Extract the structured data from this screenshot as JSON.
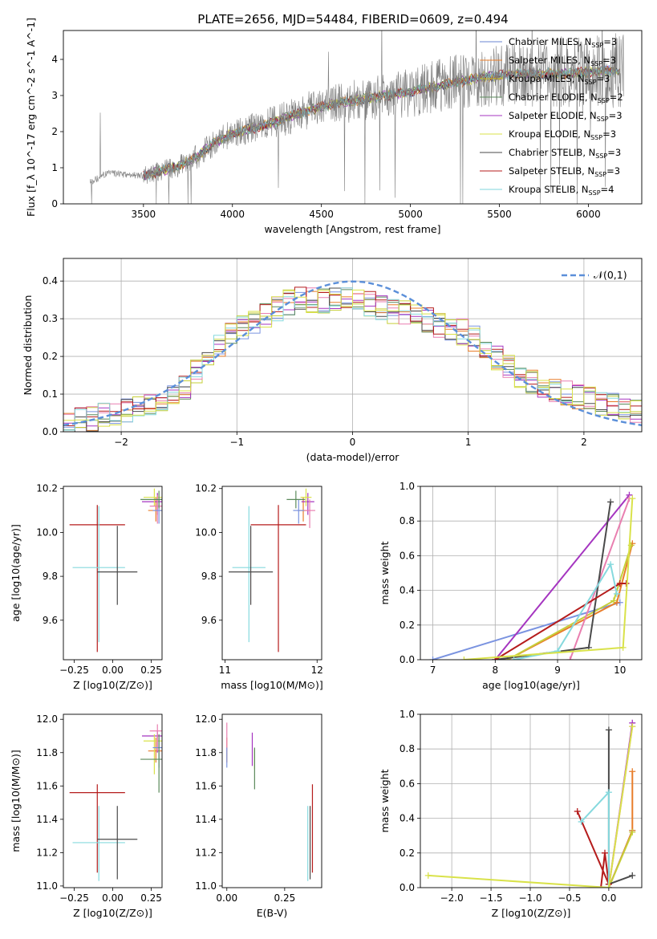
{
  "title": "PLATE=2656, MJD=54484, FIBERID=0609, z=0.494",
  "legend_entries": [
    {
      "label": "Chabrier MILES, N",
      "sub": "SSP",
      "suffix": "=3",
      "color": "#6a86d2"
    },
    {
      "label": "Salpeter MILES, N",
      "sub": "SSP",
      "suffix": "=3",
      "color": "#e87d2a"
    },
    {
      "label": "Kroupa MILES, N",
      "sub": "SSP",
      "suffix": "=3",
      "color": "#c6b823"
    },
    {
      "label": "Chabrier ELODIE, N",
      "sub": "SSP",
      "suffix": "=2",
      "color": "#5b8a5b"
    },
    {
      "label": "Salpeter ELODIE, N",
      "sub": "SSP",
      "suffix": "=3",
      "color": "#a535c0"
    },
    {
      "label": "Kroupa ELODIE, N",
      "sub": "SSP",
      "suffix": "=3",
      "color": "#d9e24a"
    },
    {
      "label": "Chabrier STELIB, N",
      "sub": "SSP",
      "suffix": "=3",
      "color": "#4a4a4a"
    },
    {
      "label": "Salpeter STELIB, N",
      "sub": "SSP",
      "suffix": "=3",
      "color": "#b51c1c"
    },
    {
      "label": "Kroupa STELIB, N",
      "sub": "SSP",
      "suffix": "=4",
      "color": "#7fd6dc"
    }
  ],
  "hist_colors": [
    "#7a93e0",
    "#e87d2a",
    "#c6cf3a",
    "#5b8a5b",
    "#a535c0",
    "#e97fb0",
    "#4a4a4a",
    "#b51c1c",
    "#86d9de",
    "#d9e24a"
  ],
  "chart_data": [
    {
      "type": "line",
      "name": "spectrum",
      "xlabel": "wavelength [Angstrom, rest frame]",
      "ylabel": "Flux [f_λ 10^-17 erg cm^-2 s^-1 A^-1]",
      "xlim": [
        3050,
        6300
      ],
      "ylim": [
        0,
        4.8
      ],
      "xticks": [
        3500,
        4000,
        4500,
        5000,
        5500,
        6000
      ],
      "yticks": [
        0,
        1,
        2,
        3,
        4
      ],
      "continuum": {
        "x": [
          3200,
          3300,
          3500,
          3700,
          3800,
          3900,
          4000,
          4200,
          4400,
          4600,
          4800,
          5000,
          5200,
          5400,
          5600,
          5800,
          6000,
          6150
        ],
        "y": [
          0.6,
          0.85,
          0.78,
          1.05,
          1.3,
          1.7,
          1.95,
          2.2,
          2.55,
          2.8,
          2.95,
          3.1,
          3.3,
          3.5,
          3.6,
          3.6,
          3.65,
          3.7
        ]
      },
      "legend_position": "upper right"
    },
    {
      "type": "line",
      "name": "residual-distribution",
      "xlabel": "(data-model)/error",
      "ylabel": "Normed distribution",
      "xlim": [
        -2.5,
        2.5
      ],
      "ylim": [
        0,
        0.46
      ],
      "xticks": [
        -2,
        -1,
        0,
        1,
        2
      ],
      "yticks": [
        0.0,
        0.1,
        0.2,
        0.3,
        0.4
      ],
      "series": [
        {
          "name": "𝒩(0,1)",
          "mean": 0,
          "sigma": 1
        }
      ],
      "hist_bins": [
        -2.5,
        2.5,
        50
      ],
      "hist_envelope": {
        "x": [
          -2.5,
          -2.0,
          -1.5,
          -1.2,
          -1.0,
          -0.5,
          0.0,
          0.5,
          1.0,
          1.3,
          1.5,
          2.0,
          2.5
        ],
        "y": [
          0.02,
          0.05,
          0.1,
          0.22,
          0.27,
          0.35,
          0.35,
          0.31,
          0.26,
          0.18,
          0.14,
          0.09,
          0.05
        ]
      },
      "grid": true,
      "legend_position": "upper right"
    },
    {
      "type": "scatter",
      "name": "age-vs-Z",
      "xlabel": "Z [log10(Z/Z⊙)]",
      "ylabel": "age [log10(age/yr)]",
      "xlim": [
        -0.32,
        0.32
      ],
      "ylim": [
        9.42,
        10.21
      ],
      "xticks": [
        -0.25,
        0.0,
        0.25
      ],
      "yticks": [
        9.6,
        9.8,
        10.0,
        10.2
      ],
      "points": [
        {
          "x": -0.1,
          "y": 10.035,
          "xerr": 0.18,
          "yerr": [
            0.58,
            0.09
          ],
          "c": 7
        },
        {
          "x": -0.09,
          "y": 9.84,
          "xerr": 0.17,
          "yerr": [
            0.34,
            0.28
          ],
          "c": 8
        },
        {
          "x": 0.03,
          "y": 9.82,
          "xerr": 0.13,
          "yerr": [
            0.15,
            0.21
          ],
          "c": 6
        },
        {
          "x": 0.28,
          "y": 10.1,
          "xerr": 0.05,
          "yerr": [
            0.05,
            0.06
          ],
          "c": 1
        },
        {
          "x": 0.29,
          "y": 10.14,
          "xerr": 0.1,
          "yerr": [
            0.06,
            0.04
          ],
          "c": 4
        },
        {
          "x": 0.27,
          "y": 10.16,
          "xerr": 0.07,
          "yerr": [
            0.04,
            0.04
          ],
          "c": 9
        },
        {
          "x": 0.29,
          "y": 10.12,
          "xerr": 0.05,
          "yerr": [
            0.08,
            0.05
          ],
          "c": 5
        },
        {
          "x": 0.3,
          "y": 10.1,
          "xerr": 0.04,
          "yerr": [
            0.06,
            0.05
          ],
          "c": 0
        },
        {
          "x": 0.3,
          "y": 10.15,
          "xerr": 0.12,
          "yerr": [
            0.04,
            0.04
          ],
          "c": 3
        }
      ]
    },
    {
      "type": "scatter",
      "name": "age-vs-mass",
      "xlabel": "mass [log10(M/M⊙)]",
      "ylabel": "",
      "xlim": [
        10.97,
        12.05
      ],
      "ylim": [
        9.42,
        10.21
      ],
      "xticks": [
        11,
        12
      ],
      "yticks": [
        9.6,
        9.8,
        10.0,
        10.2
      ],
      "points": [
        {
          "x": 11.58,
          "y": 10.035,
          "xerr": 0.3,
          "yerr": [
            0.58,
            0.09
          ],
          "c": 7
        },
        {
          "x": 11.26,
          "y": 9.84,
          "xerr": 0.18,
          "yerr": [
            0.34,
            0.28
          ],
          "c": 8
        },
        {
          "x": 11.28,
          "y": 9.82,
          "xerr": 0.24,
          "yerr": [
            0.15,
            0.21
          ],
          "c": 6
        },
        {
          "x": 11.85,
          "y": 10.1,
          "xerr": 0.06,
          "yerr": [
            0.05,
            0.06
          ],
          "c": 1
        },
        {
          "x": 11.9,
          "y": 10.14,
          "xerr": 0.07,
          "yerr": [
            0.06,
            0.04
          ],
          "c": 4
        },
        {
          "x": 11.88,
          "y": 10.16,
          "xerr": 0.06,
          "yerr": [
            0.04,
            0.04
          ],
          "c": 9
        },
        {
          "x": 11.92,
          "y": 10.1,
          "xerr": 0.06,
          "yerr": [
            0.08,
            0.05
          ],
          "c": 5
        },
        {
          "x": 11.8,
          "y": 10.1,
          "xerr": 0.06,
          "yerr": [
            0.06,
            0.05
          ],
          "c": 0
        },
        {
          "x": 11.77,
          "y": 10.15,
          "xerr": 0.1,
          "yerr": [
            0.04,
            0.04
          ],
          "c": 3
        }
      ]
    },
    {
      "type": "line",
      "name": "mass-weight-vs-age",
      "xlabel": "age [log10(age/yr)]",
      "ylabel": "mass weight",
      "xlim": [
        6.8,
        10.35
      ],
      "ylim": [
        0,
        1
      ],
      "xticks": [
        7,
        8,
        9,
        10
      ],
      "yticks": [
        0.0,
        0.2,
        0.4,
        0.6,
        0.8,
        1.0
      ],
      "grid": true,
      "series": [
        {
          "x": [
            7.0,
            10.0
          ],
          "y": [
            0.0,
            0.33
          ],
          "c": 0
        },
        {
          "x": [
            8.2,
            9.95,
            10.2
          ],
          "y": [
            0.0,
            0.33,
            0.67
          ],
          "c": 1
        },
        {
          "x": [
            8.2,
            9.9,
            10.18
          ],
          "y": [
            0.0,
            0.34,
            0.66
          ],
          "c": 2
        },
        {
          "x": [
            8.0,
            10.15
          ],
          "y": [
            0.0,
            0.95
          ],
          "c": 4
        },
        {
          "x": [
            9.2,
            10.15
          ],
          "y": [
            0.0,
            0.93
          ],
          "c": 5
        },
        {
          "x": [
            8.0,
            9.5,
            9.85
          ],
          "y": [
            0.0,
            0.07,
            0.91
          ],
          "c": 6
        },
        {
          "x": [
            8.0,
            10.0,
            10.1
          ],
          "y": [
            0.0,
            0.44,
            0.44
          ],
          "c": 7
        },
        {
          "x": [
            8.3,
            9.0,
            9.85,
            9.95
          ],
          "y": [
            0.0,
            0.05,
            0.55,
            0.38
          ],
          "c": 8
        },
        {
          "x": [
            7.5,
            10.05,
            10.2
          ],
          "y": [
            0.0,
            0.07,
            0.93
          ],
          "c": 9
        }
      ]
    },
    {
      "type": "scatter",
      "name": "mass-vs-Z",
      "xlabel": "Z [log10(Z/Z⊙)]",
      "ylabel": "mass [log10(M/M⊙)]",
      "xlim": [
        -0.32,
        0.32
      ],
      "ylim": [
        10.99,
        12.03
      ],
      "xticks": [
        -0.25,
        0.0,
        0.25
      ],
      "yticks": [
        11.0,
        11.2,
        11.4,
        11.6,
        11.8,
        12.0
      ],
      "points": [
        {
          "x": -0.1,
          "y": 11.56,
          "xerr": 0.18,
          "yerr": [
            0.48,
            0.05
          ],
          "c": 7
        },
        {
          "x": -0.09,
          "y": 11.26,
          "xerr": 0.17,
          "yerr": [
            0.23,
            0.22
          ],
          "c": 8
        },
        {
          "x": 0.03,
          "y": 11.28,
          "xerr": 0.13,
          "yerr": [
            0.24,
            0.2
          ],
          "c": 6
        },
        {
          "x": 0.28,
          "y": 11.81,
          "xerr": 0.05,
          "yerr": [
            0.07,
            0.08
          ],
          "c": 1
        },
        {
          "x": 0.29,
          "y": 11.9,
          "xerr": 0.1,
          "yerr": [
            0.1,
            0.03
          ],
          "c": 4
        },
        {
          "x": 0.27,
          "y": 11.87,
          "xerr": 0.07,
          "yerr": [
            0.2,
            0.04
          ],
          "c": 9
        },
        {
          "x": 0.29,
          "y": 11.93,
          "xerr": 0.05,
          "yerr": [
            0.12,
            0.04
          ],
          "c": 5
        },
        {
          "x": 0.3,
          "y": 11.83,
          "xerr": 0.04,
          "yerr": [
            0.12,
            0.06
          ],
          "c": 0
        },
        {
          "x": 0.3,
          "y": 11.76,
          "xerr": 0.12,
          "yerr": [
            0.2,
            0.15
          ],
          "c": 3
        }
      ]
    },
    {
      "type": "scatter",
      "name": "mass-vs-ebv",
      "xlabel": "E(B-V)",
      "ylabel": "",
      "xlim": [
        -0.02,
        0.41
      ],
      "ylim": [
        10.99,
        12.03
      ],
      "xticks": [
        0.0,
        0.25
      ],
      "tick_labels": [
        "0.00",
        "0.25"
      ],
      "yticks": [
        11.0,
        11.2,
        11.4,
        11.6,
        11.8,
        12.0
      ],
      "points": [
        {
          "x": 0.37,
          "y": 11.56,
          "yerr": [
            0.48,
            0.05
          ],
          "c": 7
        },
        {
          "x": 0.35,
          "y": 11.26,
          "yerr": [
            0.23,
            0.22
          ],
          "c": 8
        },
        {
          "x": 0.36,
          "y": 11.28,
          "yerr": [
            0.24,
            0.2
          ],
          "c": 6
        },
        {
          "x": 0.0,
          "y": 11.81,
          "yerr": [
            0.07,
            0.08
          ],
          "c": 1
        },
        {
          "x": 0.11,
          "y": 11.82,
          "yerr": [
            0.1,
            0.1
          ],
          "c": 4
        },
        {
          "x": 0.12,
          "y": 11.75,
          "yerr": [
            0.05,
            0.07
          ],
          "c": 9
        },
        {
          "x": 0.0,
          "y": 11.93,
          "yerr": [
            0.12,
            0.05
          ],
          "c": 5
        },
        {
          "x": 0.0,
          "y": 11.78,
          "yerr": [
            0.07,
            0.05
          ],
          "c": 0
        },
        {
          "x": 0.12,
          "y": 11.73,
          "yerr": [
            0.15,
            0.1
          ],
          "c": 3
        }
      ]
    },
    {
      "type": "line",
      "name": "mass-weight-vs-Z",
      "xlabel": "Z [log10(Z/Z⊙)]",
      "ylabel": "mass weight",
      "xlim": [
        -2.4,
        0.42
      ],
      "ylim": [
        0,
        1
      ],
      "xticks": [
        -2.0,
        -1.5,
        -1.0,
        -0.5,
        0.0
      ],
      "yticks": [
        0.0,
        0.2,
        0.4,
        0.6,
        0.8,
        1.0
      ],
      "grid": true,
      "series": [
        {
          "x": [
            0.0,
            0.3
          ],
          "y": [
            0.0,
            0.33
          ],
          "c": 0
        },
        {
          "x": [
            0.0,
            0.3,
            0.3
          ],
          "y": [
            0.0,
            0.33,
            0.67
          ],
          "c": 1
        },
        {
          "x": [
            0.0,
            0.3
          ],
          "y": [
            0.0,
            0.32
          ],
          "c": 2
        },
        {
          "x": [
            0.0,
            0.3
          ],
          "y": [
            0.0,
            0.95
          ],
          "c": 4
        },
        {
          "x": [
            0.0,
            0.3
          ],
          "y": [
            0.0,
            0.93
          ],
          "c": 5
        },
        {
          "x": [
            0.3,
            0.0,
            0.0
          ],
          "y": [
            0.07,
            0.02,
            0.91
          ],
          "c": 6
        },
        {
          "x": [
            -0.1,
            -0.05,
            0.0,
            -0.4
          ],
          "y": [
            0.0,
            0.2,
            0.02,
            0.44
          ],
          "c": 7
        },
        {
          "x": [
            -0.35,
            0.0,
            0.0
          ],
          "y": [
            0.38,
            0.55,
            0.0
          ],
          "c": 8
        },
        {
          "x": [
            -2.3,
            0.0,
            0.3
          ],
          "y": [
            0.07,
            0.0,
            0.93
          ],
          "c": 9
        }
      ]
    }
  ]
}
